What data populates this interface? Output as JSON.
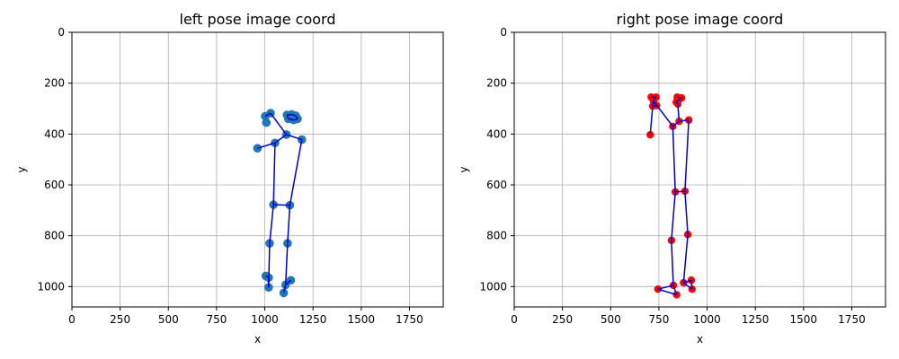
{
  "chart_data": [
    {
      "type": "scatter",
      "title": "left pose image coord",
      "xlabel": "x",
      "ylabel": "y",
      "xlim": [
        0,
        1925
      ],
      "ylim": [
        1080,
        0
      ],
      "y_inverted": true,
      "grid": true,
      "xticks": [
        0,
        250,
        500,
        750,
        1000,
        1250,
        1500,
        1750
      ],
      "yticks": [
        0,
        200,
        400,
        600,
        800,
        1000
      ],
      "colors": {
        "points": "#1f77b4",
        "skeleton": "#0000cc"
      },
      "points": [
        {
          "x": 1030,
          "y": 318
        },
        {
          "x": 1002,
          "y": 330
        },
        {
          "x": 1008,
          "y": 355
        },
        {
          "x": 1115,
          "y": 325
        },
        {
          "x": 1140,
          "y": 323
        },
        {
          "x": 1160,
          "y": 328
        },
        {
          "x": 1170,
          "y": 340
        },
        {
          "x": 1150,
          "y": 345
        },
        {
          "x": 1122,
          "y": 340
        },
        {
          "x": 1112,
          "y": 402
        },
        {
          "x": 1192,
          "y": 422
        },
        {
          "x": 1053,
          "y": 435
        },
        {
          "x": 962,
          "y": 456
        },
        {
          "x": 1045,
          "y": 678
        },
        {
          "x": 1130,
          "y": 680
        },
        {
          "x": 1025,
          "y": 830
        },
        {
          "x": 1118,
          "y": 830
        },
        {
          "x": 1005,
          "y": 958
        },
        {
          "x": 1020,
          "y": 965
        },
        {
          "x": 1020,
          "y": 1003
        },
        {
          "x": 1108,
          "y": 993
        },
        {
          "x": 1135,
          "y": 975
        },
        {
          "x": 1098,
          "y": 1025
        }
      ],
      "edges": [
        [
          0,
          9
        ],
        [
          0,
          1
        ],
        [
          9,
          11
        ],
        [
          9,
          10
        ],
        [
          11,
          12
        ],
        [
          11,
          13
        ],
        [
          10,
          14
        ],
        [
          13,
          14
        ],
        [
          13,
          15
        ],
        [
          14,
          16
        ],
        [
          15,
          19
        ],
        [
          16,
          20
        ],
        [
          20,
          21
        ],
        [
          20,
          22
        ],
        [
          17,
          18
        ],
        [
          18,
          19
        ],
        [
          3,
          4
        ],
        [
          4,
          5
        ],
        [
          5,
          6
        ],
        [
          6,
          7
        ],
        [
          7,
          8
        ],
        [
          8,
          3
        ]
      ]
    },
    {
      "type": "scatter",
      "title": "right pose image coord",
      "xlabel": "x",
      "ylabel": "y",
      "xlim": [
        0,
        1925
      ],
      "ylim": [
        1080,
        0
      ],
      "y_inverted": true,
      "grid": true,
      "xticks": [
        0,
        250,
        500,
        750,
        1000,
        1250,
        1500,
        1750
      ],
      "yticks": [
        0,
        200,
        400,
        600,
        800,
        1000
      ],
      "colors": {
        "points": "#ff0000",
        "skeleton": "#0000cc"
      },
      "points": [
        {
          "x": 710,
          "y": 255
        },
        {
          "x": 735,
          "y": 255
        },
        {
          "x": 722,
          "y": 270
        },
        {
          "x": 718,
          "y": 290
        },
        {
          "x": 738,
          "y": 288
        },
        {
          "x": 845,
          "y": 255
        },
        {
          "x": 868,
          "y": 258
        },
        {
          "x": 850,
          "y": 268
        },
        {
          "x": 840,
          "y": 275
        },
        {
          "x": 848,
          "y": 282
        },
        {
          "x": 705,
          "y": 403
        },
        {
          "x": 822,
          "y": 370
        },
        {
          "x": 855,
          "y": 350
        },
        {
          "x": 905,
          "y": 345
        },
        {
          "x": 835,
          "y": 628
        },
        {
          "x": 885,
          "y": 625
        },
        {
          "x": 815,
          "y": 818
        },
        {
          "x": 900,
          "y": 795
        },
        {
          "x": 745,
          "y": 1010
        },
        {
          "x": 825,
          "y": 995
        },
        {
          "x": 842,
          "y": 1032
        },
        {
          "x": 878,
          "y": 985
        },
        {
          "x": 918,
          "y": 975
        },
        {
          "x": 922,
          "y": 1010
        }
      ],
      "edges": [
        [
          0,
          1
        ],
        [
          1,
          2
        ],
        [
          2,
          3
        ],
        [
          3,
          4
        ],
        [
          2,
          11
        ],
        [
          3,
          10
        ],
        [
          5,
          6
        ],
        [
          6,
          7
        ],
        [
          7,
          8
        ],
        [
          8,
          9
        ],
        [
          9,
          12
        ],
        [
          11,
          12
        ],
        [
          12,
          13
        ],
        [
          11,
          14
        ],
        [
          13,
          15
        ],
        [
          14,
          15
        ],
        [
          14,
          16
        ],
        [
          15,
          17
        ],
        [
          16,
          19
        ],
        [
          17,
          21
        ],
        [
          19,
          20
        ],
        [
          19,
          18
        ],
        [
          18,
          20
        ],
        [
          21,
          22
        ],
        [
          22,
          23
        ],
        [
          21,
          23
        ]
      ]
    }
  ]
}
